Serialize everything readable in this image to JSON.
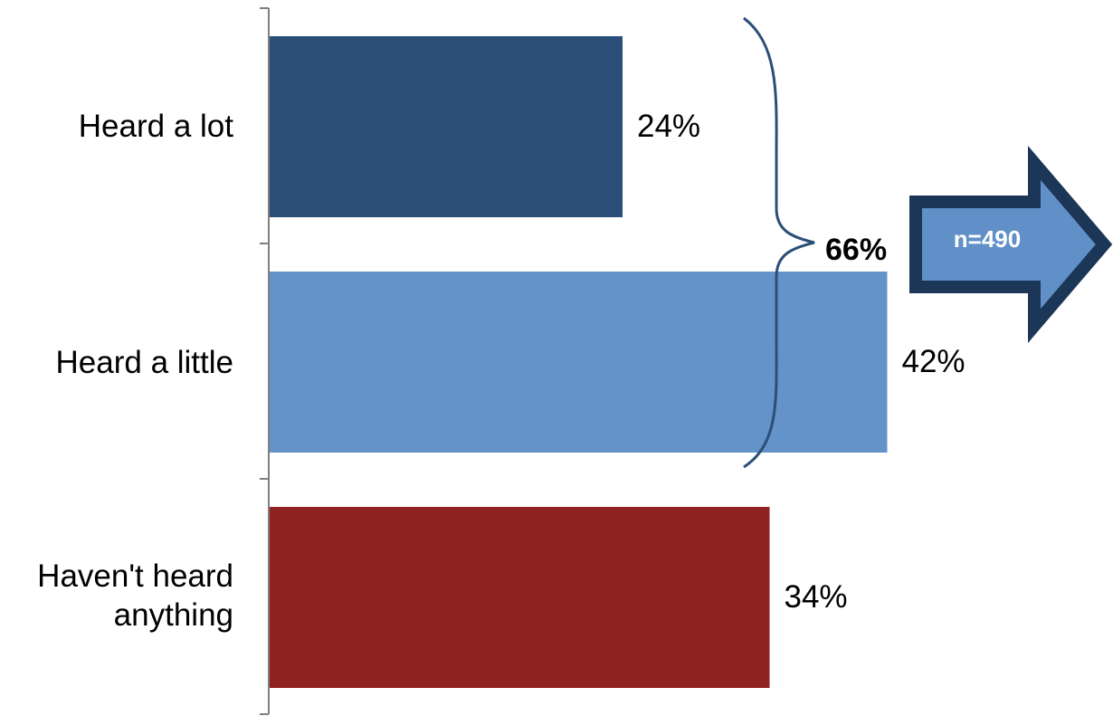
{
  "chart_data": {
    "type": "bar",
    "orientation": "horizontal",
    "categories": [
      "Heard a lot",
      "Heard a little",
      "Haven't heard anything"
    ],
    "values": [
      24,
      42,
      34
    ],
    "value_labels": [
      "24%",
      "42%",
      "34%"
    ],
    "colors": [
      "#2b4f78",
      "#6393c9",
      "#8e2321"
    ],
    "grid": false,
    "annotations": {
      "bracket_total": "66%",
      "arrow_text": "n=490",
      "arrow_fill": "#6190c8",
      "arrow_border": "#1c3657",
      "bracket_color": "#2b4f78"
    }
  }
}
